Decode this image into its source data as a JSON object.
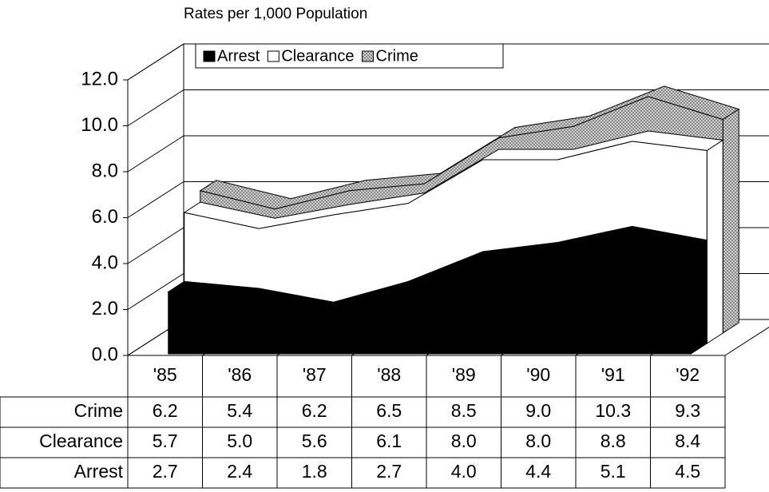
{
  "chart_data": {
    "type": "area3d",
    "title": "Rates per 1,000 Population",
    "categories": [
      "'85",
      "'86",
      "'87",
      "'88",
      "'89",
      "'90",
      "'91",
      "'92"
    ],
    "series": [
      {
        "name": "Arrest",
        "color": "#000000",
        "values": [
          2.7,
          2.4,
          1.8,
          2.7,
          4.0,
          4.4,
          5.1,
          4.5
        ],
        "value_labels": [
          "2.7",
          "2.4",
          "1.8",
          "2.7",
          "4.0",
          "4.4",
          "5.1",
          "4.5"
        ]
      },
      {
        "name": "Clearance",
        "color": "#ffffff",
        "values": [
          5.7,
          5.0,
          5.6,
          6.1,
          8.0,
          8.0,
          8.8,
          8.4
        ],
        "value_labels": [
          "5.7",
          "5.0",
          "5.6",
          "6.1",
          "8.0",
          "8.0",
          "8.8",
          "8.4"
        ]
      },
      {
        "name": "Crime",
        "color": "#b8b8b8",
        "values": [
          6.2,
          5.4,
          6.2,
          6.5,
          8.5,
          9.0,
          10.3,
          9.3
        ],
        "value_labels": [
          "6.2",
          "5.4",
          "6.2",
          "6.5",
          "8.5",
          "9.0",
          "10.3",
          "9.3"
        ]
      }
    ],
    "ylim": [
      0,
      12
    ],
    "yticks": [
      {
        "value": 0,
        "label": "0.0"
      },
      {
        "value": 2,
        "label": "2.0"
      },
      {
        "value": 4,
        "label": "4.0"
      },
      {
        "value": 6,
        "label": "6.0"
      },
      {
        "value": 8,
        "label": "8.0"
      },
      {
        "value": 10,
        "label": "10.0"
      },
      {
        "value": 12,
        "label": "12.0"
      }
    ],
    "grid": true
  }
}
